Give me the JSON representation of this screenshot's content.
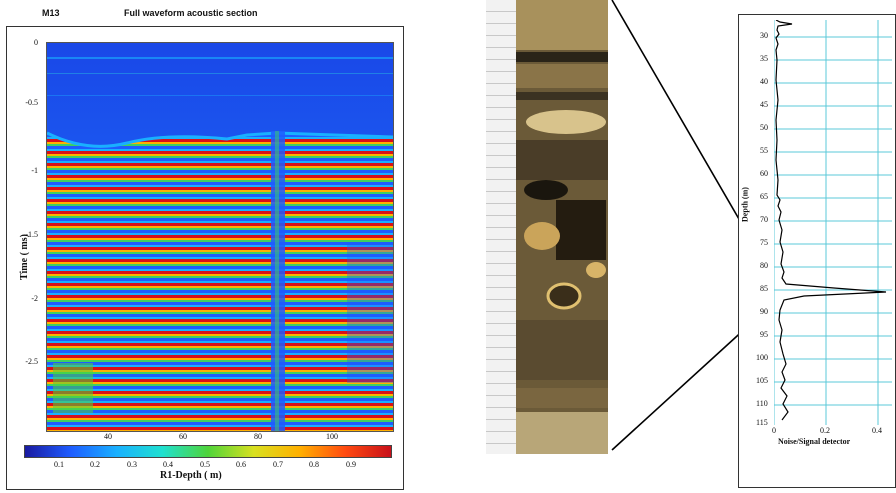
{
  "section": {
    "well_label": "M13",
    "title": "Full waveform acoustic section",
    "y_axis_label": "Time ( ms)",
    "x_axis_label": "R1-Depth ( m)",
    "y_ticks": [
      "0",
      "-0.5",
      "-1",
      "-1.5",
      "-2",
      "-2.5"
    ],
    "x_ticks": [
      "40",
      "60",
      "80",
      "100"
    ],
    "colorbar_ticks": [
      "0.1",
      "0.2",
      "0.3",
      "0.4",
      "0.5",
      "0.6",
      "0.7",
      "0.8",
      "0.9"
    ],
    "colorbar_colors": [
      "#1a1aa0",
      "#1e5cff",
      "#19b0ff",
      "#1fe0d0",
      "#4fd43a",
      "#d8e020",
      "#ffb000",
      "#ff4a10",
      "#c8101a"
    ]
  },
  "detector": {
    "y_axis_label": "Depth (m)",
    "x_axis_label": "Noise/Signal detector",
    "depth_ticks": [
      "30",
      "35",
      "40",
      "45",
      "50",
      "55",
      "60",
      "65",
      "70",
      "75",
      "80",
      "85",
      "90",
      "95",
      "100",
      "105",
      "110",
      "115"
    ],
    "x_ticks": [
      "0",
      "0.2",
      "0.4"
    ],
    "grid_color": "#5bc8d8"
  }
}
